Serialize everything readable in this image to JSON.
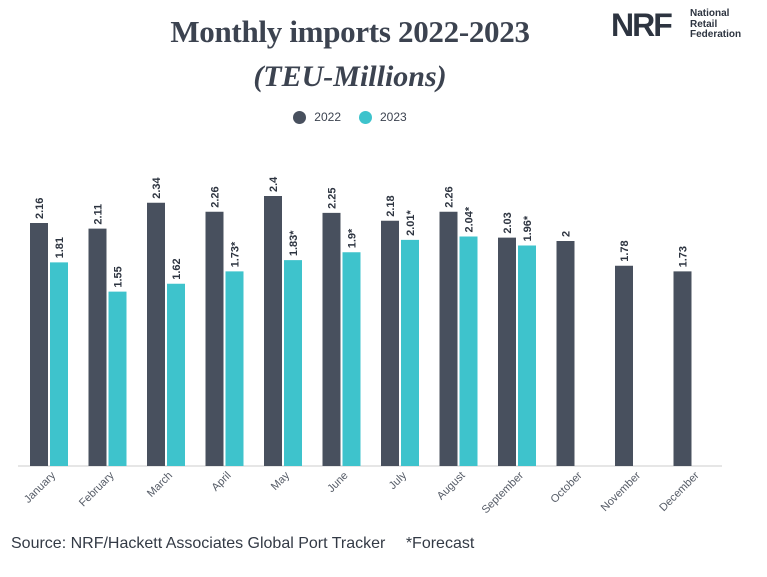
{
  "title": "Monthly imports 2022-2023",
  "subtitle": "(TEU-Millions)",
  "logo": {
    "mark": "NRF",
    "lines": [
      "National",
      "Retail",
      "Federation"
    ]
  },
  "colors": {
    "series_2022": "#48505e",
    "series_2023": "#3ec3cc",
    "axis": "#cccccc",
    "text": "#333a45"
  },
  "chart_data": {
    "type": "bar",
    "categories": [
      "January",
      "February",
      "March",
      "April",
      "May",
      "June",
      "July",
      "August",
      "September",
      "October",
      "November",
      "December"
    ],
    "series": [
      {
        "name": "2022",
        "values": [
          2.16,
          2.11,
          2.34,
          2.26,
          2.4,
          2.25,
          2.18,
          2.26,
          2.03,
          2,
          1.78,
          1.73
        ],
        "labels": [
          "2.16",
          "2.11",
          "2.34",
          "2.26",
          "2.4",
          "2.25",
          "2.18",
          "2.26",
          "2.03",
          "2",
          "1.78",
          "1.73"
        ]
      },
      {
        "name": "2023",
        "values": [
          1.81,
          1.55,
          1.62,
          1.73,
          1.83,
          1.9,
          2.01,
          2.04,
          1.96,
          null,
          null,
          null
        ],
        "labels": [
          "1.81",
          "1.55",
          "1.62",
          "1.73*",
          "1.83*",
          "1.9*",
          "2.01*",
          "2.04*",
          "1.96*",
          null,
          null,
          null
        ]
      }
    ],
    "ylim": [
      0,
      2.4
    ],
    "grid": false,
    "legend": "top-center",
    "xlabel": "",
    "ylabel": ""
  },
  "source_note": "Source: NRF/Hackett Associates Global Port Tracker",
  "forecast_note": "*Forecast"
}
